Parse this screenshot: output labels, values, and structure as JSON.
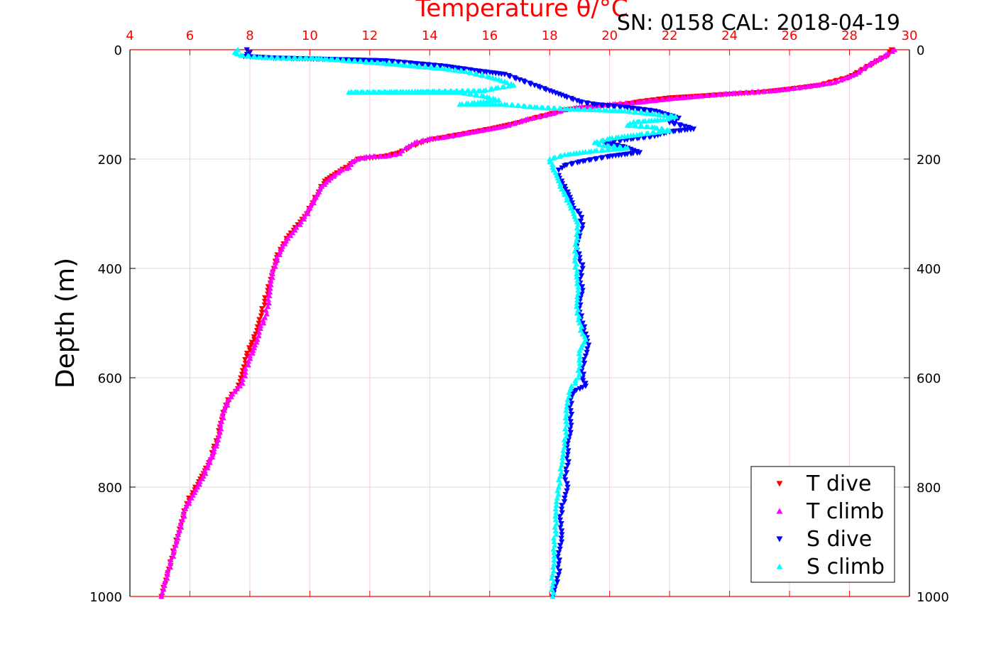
{
  "chart_data": {
    "type": "scatter",
    "title": "Temperature θ/°C",
    "subtitle": "SN: 0158  CAL: 2018-04-19",
    "ylabel": "Depth (m)",
    "xlim": [
      4,
      30
    ],
    "ylim": [
      0,
      1000
    ],
    "y_reversed": true,
    "x_ticks": [
      4,
      6,
      8,
      10,
      12,
      14,
      16,
      18,
      20,
      22,
      24,
      26,
      28,
      30
    ],
    "y_ticks": [
      0,
      200,
      400,
      600,
      800,
      1000
    ],
    "grid": true,
    "legend_position": "bottom-right",
    "series": [
      {
        "name": "T dive",
        "marker": "triangle-down",
        "color": "#ff0000",
        "points": [
          [
            29.4,
            0
          ],
          [
            29.3,
            10
          ],
          [
            28.8,
            25
          ],
          [
            28.0,
            50
          ],
          [
            27.0,
            65
          ],
          [
            26.0,
            72
          ],
          [
            25.0,
            78
          ],
          [
            23.5,
            83
          ],
          [
            22.0,
            88
          ],
          [
            21.0,
            95
          ],
          [
            20.5,
            100
          ],
          [
            19.5,
            104
          ],
          [
            18.5,
            110
          ],
          [
            18.0,
            118
          ],
          [
            17.5,
            125
          ],
          [
            17.0,
            133
          ],
          [
            16.0,
            145
          ],
          [
            15.5,
            150
          ],
          [
            15.0,
            155
          ],
          [
            14.5,
            160
          ],
          [
            14.0,
            165
          ],
          [
            13.6,
            172
          ],
          [
            13.3,
            180
          ],
          [
            13.0,
            188
          ],
          [
            12.5,
            195
          ],
          [
            12.0,
            198
          ],
          [
            11.6,
            200
          ],
          [
            11.5,
            205
          ],
          [
            11.2,
            215
          ],
          [
            10.9,
            225
          ],
          [
            10.5,
            240
          ],
          [
            10.3,
            260
          ],
          [
            10.1,
            280
          ],
          [
            9.9,
            300
          ],
          [
            9.6,
            320
          ],
          [
            9.3,
            340
          ],
          [
            9.1,
            360
          ],
          [
            8.9,
            380
          ],
          [
            8.8,
            400
          ],
          [
            8.7,
            420
          ],
          [
            8.6,
            440
          ],
          [
            8.5,
            460
          ],
          [
            8.4,
            480
          ],
          [
            8.3,
            500
          ],
          [
            8.2,
            520
          ],
          [
            8.05,
            540
          ],
          [
            7.9,
            560
          ],
          [
            7.8,
            580
          ],
          [
            7.7,
            600
          ],
          [
            7.6,
            620
          ],
          [
            7.4,
            630
          ],
          [
            7.2,
            650
          ],
          [
            7.1,
            670
          ],
          [
            7.0,
            690
          ],
          [
            6.95,
            710
          ],
          [
            6.8,
            730
          ],
          [
            6.7,
            750
          ],
          [
            6.5,
            770
          ],
          [
            6.3,
            790
          ],
          [
            6.1,
            810
          ],
          [
            5.9,
            830
          ],
          [
            5.8,
            850
          ],
          [
            5.7,
            870
          ],
          [
            5.6,
            890
          ],
          [
            5.5,
            910
          ],
          [
            5.4,
            930
          ],
          [
            5.3,
            950
          ],
          [
            5.2,
            970
          ],
          [
            5.1,
            990
          ],
          [
            5.05,
            1000
          ]
        ]
      },
      {
        "name": "T climb",
        "marker": "triangle-up",
        "color": "#ff00ff",
        "points": [
          [
            29.5,
            0
          ],
          [
            29.2,
            10
          ],
          [
            28.7,
            25
          ],
          [
            28.2,
            45
          ],
          [
            27.5,
            60
          ],
          [
            26.5,
            68
          ],
          [
            25.5,
            75
          ],
          [
            24.0,
            80
          ],
          [
            23.0,
            85
          ],
          [
            22.0,
            90
          ],
          [
            21.0,
            96
          ],
          [
            20.0,
            100
          ],
          [
            19.5,
            103
          ],
          [
            19.0,
            105
          ],
          [
            18.5,
            110
          ],
          [
            18.0,
            118
          ],
          [
            17.2,
            128
          ],
          [
            16.5,
            140
          ],
          [
            16.0,
            145
          ],
          [
            15.0,
            155
          ],
          [
            14.5,
            160
          ],
          [
            14.0,
            163
          ],
          [
            13.5,
            170
          ],
          [
            13.2,
            180
          ],
          [
            13.0,
            190
          ],
          [
            12.5,
            195
          ],
          [
            12.0,
            195
          ],
          [
            11.7,
            198
          ],
          [
            11.4,
            205
          ],
          [
            11.3,
            215
          ],
          [
            11.0,
            222
          ],
          [
            10.7,
            235
          ],
          [
            10.4,
            250
          ],
          [
            10.2,
            270
          ],
          [
            10.0,
            290
          ],
          [
            9.8,
            310
          ],
          [
            9.5,
            330
          ],
          [
            9.2,
            350
          ],
          [
            9.0,
            370
          ],
          [
            8.85,
            390
          ],
          [
            8.75,
            410
          ],
          [
            8.7,
            430
          ],
          [
            8.65,
            450
          ],
          [
            8.6,
            470
          ],
          [
            8.5,
            490
          ],
          [
            8.35,
            510
          ],
          [
            8.25,
            530
          ],
          [
            8.1,
            550
          ],
          [
            7.95,
            570
          ],
          [
            7.85,
            590
          ],
          [
            7.75,
            610
          ],
          [
            7.5,
            625
          ],
          [
            7.3,
            640
          ],
          [
            7.15,
            660
          ],
          [
            7.05,
            680
          ],
          [
            7.0,
            700
          ],
          [
            6.9,
            720
          ],
          [
            6.75,
            740
          ],
          [
            6.6,
            760
          ],
          [
            6.45,
            780
          ],
          [
            6.25,
            800
          ],
          [
            6.05,
            820
          ],
          [
            5.85,
            840
          ],
          [
            5.75,
            860
          ],
          [
            5.65,
            880
          ],
          [
            5.55,
            900
          ],
          [
            5.45,
            920
          ],
          [
            5.35,
            940
          ],
          [
            5.25,
            960
          ],
          [
            5.15,
            980
          ],
          [
            5.05,
            1000
          ]
        ]
      },
      {
        "name": "S dive",
        "marker": "triangle-down",
        "color": "#0000ff",
        "points": [
          [
            7.9,
            0
          ],
          [
            8.0,
            5
          ],
          [
            7.8,
            12
          ],
          [
            8.8,
            15
          ],
          [
            12.5,
            20
          ],
          [
            13.5,
            25
          ],
          [
            14.5,
            30
          ],
          [
            15.5,
            38
          ],
          [
            16.5,
            45
          ],
          [
            17.0,
            55
          ],
          [
            17.5,
            65
          ],
          [
            18.0,
            75
          ],
          [
            18.5,
            85
          ],
          [
            19.0,
            95
          ],
          [
            19.5,
            100
          ],
          [
            20.5,
            105
          ],
          [
            21.5,
            112
          ],
          [
            22.3,
            125
          ],
          [
            22.0,
            133
          ],
          [
            22.5,
            140
          ],
          [
            22.8,
            145
          ],
          [
            22.0,
            150
          ],
          [
            21.5,
            158
          ],
          [
            20.5,
            165
          ],
          [
            19.8,
            170
          ],
          [
            20.5,
            178
          ],
          [
            21.0,
            188
          ],
          [
            20.0,
            195
          ],
          [
            19.0,
            205
          ],
          [
            18.5,
            212
          ],
          [
            18.3,
            220
          ],
          [
            18.3,
            230
          ],
          [
            18.4,
            240
          ],
          [
            18.5,
            250
          ],
          [
            18.6,
            260
          ],
          [
            18.7,
            275
          ],
          [
            18.8,
            290
          ],
          [
            19.0,
            300
          ],
          [
            19.1,
            320
          ],
          [
            19.0,
            340
          ],
          [
            18.9,
            360
          ],
          [
            19.0,
            380
          ],
          [
            19.1,
            400
          ],
          [
            19.0,
            420
          ],
          [
            19.1,
            440
          ],
          [
            19.0,
            460
          ],
          [
            19.0,
            480
          ],
          [
            19.1,
            500
          ],
          [
            19.2,
            520
          ],
          [
            19.3,
            540
          ],
          [
            19.2,
            560
          ],
          [
            19.1,
            580
          ],
          [
            19.1,
            600
          ],
          [
            19.2,
            615
          ],
          [
            18.8,
            625
          ],
          [
            18.7,
            640
          ],
          [
            18.7,
            660
          ],
          [
            18.7,
            680
          ],
          [
            18.7,
            700
          ],
          [
            18.6,
            720
          ],
          [
            18.6,
            740
          ],
          [
            18.6,
            760
          ],
          [
            18.5,
            780
          ],
          [
            18.6,
            800
          ],
          [
            18.5,
            820
          ],
          [
            18.4,
            840
          ],
          [
            18.35,
            860
          ],
          [
            18.4,
            880
          ],
          [
            18.4,
            900
          ],
          [
            18.3,
            920
          ],
          [
            18.3,
            940
          ],
          [
            18.3,
            960
          ],
          [
            18.2,
            980
          ],
          [
            18.1,
            1000
          ]
        ]
      },
      {
        "name": "S climb",
        "marker": "triangle-up",
        "color": "#00ffff",
        "points": [
          [
            7.6,
            0
          ],
          [
            7.5,
            5
          ],
          [
            7.7,
            10
          ],
          [
            8.3,
            14
          ],
          [
            10.3,
            16
          ],
          [
            12.5,
            25
          ],
          [
            13.5,
            30
          ],
          [
            14.5,
            35
          ],
          [
            15.2,
            40
          ],
          [
            16.0,
            50
          ],
          [
            16.5,
            58
          ],
          [
            16.8,
            65
          ],
          [
            16.2,
            70
          ],
          [
            15.8,
            75
          ],
          [
            11.3,
            78
          ],
          [
            12.0,
            78
          ],
          [
            13.5,
            78
          ],
          [
            15.0,
            78
          ],
          [
            15.8,
            85
          ],
          [
            16.3,
            92
          ],
          [
            15.0,
            100
          ],
          [
            16.5,
            100
          ],
          [
            17.5,
            105
          ],
          [
            18.5,
            108
          ],
          [
            19.5,
            110
          ],
          [
            20.5,
            112
          ],
          [
            21.5,
            118
          ],
          [
            22.2,
            122
          ],
          [
            21.8,
            128
          ],
          [
            20.8,
            132
          ],
          [
            20.6,
            138
          ],
          [
            21.5,
            142
          ],
          [
            22.0,
            148
          ],
          [
            21.0,
            155
          ],
          [
            20.0,
            162
          ],
          [
            19.5,
            170
          ],
          [
            19.8,
            175
          ],
          [
            20.6,
            180
          ],
          [
            19.5,
            185
          ],
          [
            18.5,
            192
          ],
          [
            18.0,
            200
          ],
          [
            18.1,
            215
          ],
          [
            18.2,
            225
          ],
          [
            18.3,
            240
          ],
          [
            18.4,
            255
          ],
          [
            18.5,
            265
          ],
          [
            18.65,
            280
          ],
          [
            18.8,
            300
          ],
          [
            18.95,
            320
          ],
          [
            18.9,
            350
          ],
          [
            18.85,
            380
          ],
          [
            18.9,
            410
          ],
          [
            18.95,
            440
          ],
          [
            18.9,
            470
          ],
          [
            19.0,
            500
          ],
          [
            19.1,
            520
          ],
          [
            19.2,
            530
          ],
          [
            19.0,
            550
          ],
          [
            19.0,
            580
          ],
          [
            18.95,
            600
          ],
          [
            18.7,
            620
          ],
          [
            18.6,
            640
          ],
          [
            18.55,
            660
          ],
          [
            18.55,
            680
          ],
          [
            18.55,
            700
          ],
          [
            18.5,
            720
          ],
          [
            18.45,
            740
          ],
          [
            18.4,
            760
          ],
          [
            18.35,
            780
          ],
          [
            18.3,
            800
          ],
          [
            18.25,
            820
          ],
          [
            18.2,
            840
          ],
          [
            18.2,
            860
          ],
          [
            18.2,
            880
          ],
          [
            18.15,
            900
          ],
          [
            18.15,
            920
          ],
          [
            18.15,
            940
          ],
          [
            18.1,
            960
          ],
          [
            18.1,
            980
          ],
          [
            18.1,
            1000
          ]
        ]
      }
    ]
  }
}
